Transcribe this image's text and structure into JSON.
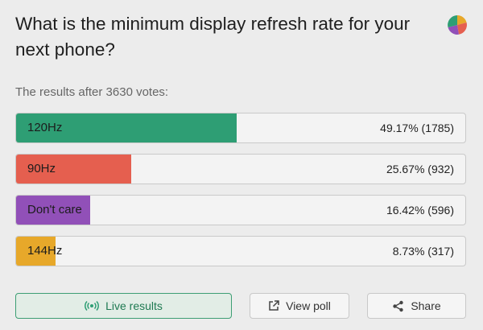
{
  "poll": {
    "question": "What is the minimum display refresh rate for your next phone?",
    "results_summary": "The results after 3630 votes:",
    "options": [
      {
        "label": "120Hz",
        "value_text": "49.17% (1785)",
        "percent": 49.17,
        "color": "#2e9e74"
      },
      {
        "label": "90Hz",
        "value_text": "25.67% (932)",
        "percent": 25.67,
        "color": "#e55f4f"
      },
      {
        "label": "Don't care",
        "value_text": "16.42% (596)",
        "percent": 16.42,
        "color": "#9150b8"
      },
      {
        "label": "144Hz",
        "value_text": "8.73% (317)",
        "percent": 8.73,
        "color": "#e7a82a"
      }
    ]
  },
  "buttons": {
    "live_results": "Live results",
    "view_poll": "View poll",
    "share": "Share"
  },
  "icons": {
    "header": "pie-chart-icon",
    "live": "broadcast-icon",
    "view": "external-link-icon",
    "share": "share-icon"
  }
}
